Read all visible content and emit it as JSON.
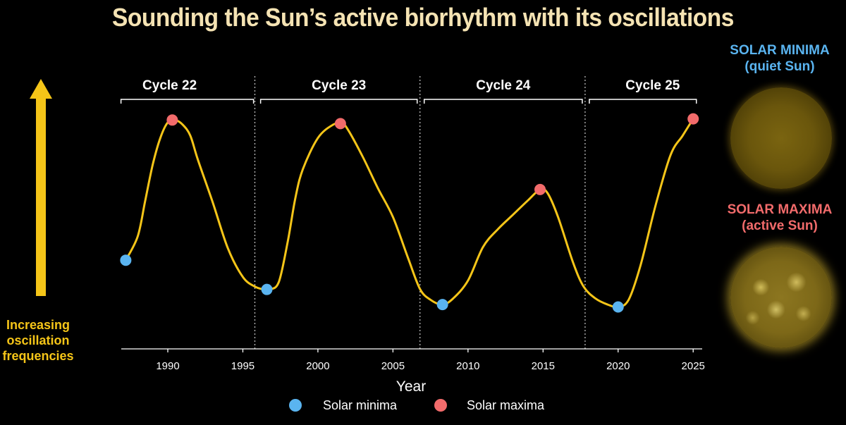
{
  "title": "Sounding the Sun’s active biorhythm with its oscillations",
  "side_labels": {
    "minima": [
      "SOLAR MINIMA",
      "(quiet Sun)"
    ],
    "maxima": [
      "SOLAR MAXIMA",
      "(active Sun)"
    ]
  },
  "arrow_label": [
    "Increasing",
    "oscillation",
    "frequencies"
  ],
  "legend": {
    "minima": "Solar minima",
    "maxima": "Solar maxima"
  },
  "colors": {
    "title": "#f5e3b3",
    "curve": "#f5c518",
    "minima": "#5ab4f0",
    "maxima": "#f26b6b",
    "axis": "#ffffff",
    "arrow": "#f5c518"
  },
  "chart_data": {
    "type": "line",
    "xlabel": "Year",
    "ylabel": "",
    "xlim": [
      1986.9,
      2025.6
    ],
    "ylim": [
      0,
      100
    ],
    "x_ticks": [
      1990,
      1995,
      2000,
      2005,
      2010,
      2015,
      2020,
      2025
    ],
    "cycles": [
      {
        "label": "Cycle 22",
        "start": 1986.6,
        "end": 1995.9
      },
      {
        "label": "Cycle 23",
        "start": 1995.9,
        "end": 2006.8
      },
      {
        "label": "Cycle 24",
        "start": 2006.8,
        "end": 2017.8
      },
      {
        "label": "Cycle 25",
        "start": 2017.8,
        "end": 2025.4
      }
    ],
    "cycle_boundaries": [
      1995.8,
      2006.8,
      2017.8
    ],
    "curve": {
      "x": [
        1987.2,
        1988.0,
        1988.5,
        1989.0,
        1989.5,
        1990.0,
        1990.5,
        1991.0,
        1991.5,
        1992.0,
        1993.0,
        1994.0,
        1995.0,
        1995.8,
        1996.4,
        1996.8,
        1997.4,
        1998.0,
        1998.5,
        1999.0,
        2000.0,
        2001.0,
        2001.6,
        2002.0,
        2003.0,
        2004.0,
        2005.0,
        2006.0,
        2006.8,
        2007.5,
        2008.3,
        2009.0,
        2010.0,
        2011.0,
        2012.0,
        2013.0,
        2014.0,
        2014.8,
        2015.3,
        2016.0,
        2017.0,
        2017.7,
        2018.5,
        2019.3,
        2020.0,
        2020.7,
        2021.5,
        2022.5,
        2023.5,
        2024.3,
        2025.0
      ],
      "y": [
        37.0,
        47.0,
        62.0,
        77.0,
        88.0,
        94.5,
        95.5,
        93.5,
        89.0,
        79.0,
        61.0,
        42.0,
        30.0,
        26.0,
        24.8,
        24.8,
        28.0,
        45.0,
        63.0,
        75.0,
        88.0,
        93.5,
        94.0,
        91.5,
        80.0,
        67.0,
        55.0,
        38.0,
        25.0,
        20.5,
        18.5,
        21.0,
        28.5,
        42.5,
        50.0,
        56.0,
        62.0,
        66.5,
        65.0,
        55.0,
        36.0,
        26.0,
        21.0,
        18.5,
        17.5,
        20.5,
        35.0,
        60.0,
        81.0,
        89.0,
        96.0
      ]
    },
    "minima": [
      {
        "year": 1987.2,
        "value": 37.0
      },
      {
        "year": 1996.6,
        "value": 24.8
      },
      {
        "year": 2008.3,
        "value": 18.5
      },
      {
        "year": 2020.0,
        "value": 17.5
      }
    ],
    "maxima": [
      {
        "year": 1990.3,
        "value": 95.5
      },
      {
        "year": 2001.5,
        "value": 94.0
      },
      {
        "year": 2014.8,
        "value": 66.5
      },
      {
        "year": 2025.0,
        "value": 96.0
      }
    ],
    "legend_position": "bottom"
  }
}
